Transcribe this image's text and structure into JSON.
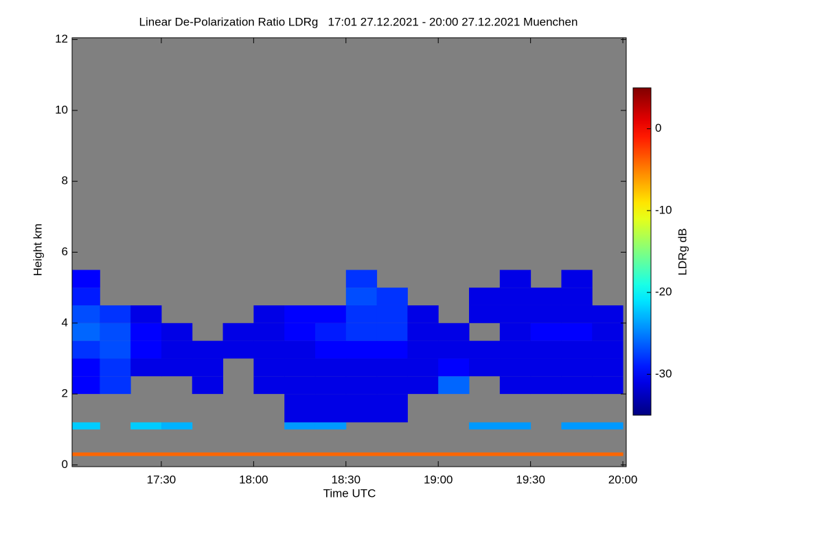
{
  "chart_data": {
    "type": "heatmap",
    "title": "Linear De-Polarization Ratio LDRg   17:01 27.12.2021 - 20:00 27.12.2021 Muenchen",
    "x_label": "Time UTC",
    "y_label": "Height km",
    "colorbar_label": "LDRg dB",
    "colormap": "jet",
    "missing_color": "#808080",
    "xlim": [
      17.0167,
      20.0183
    ],
    "ylim": [
      -0.05,
      12.05
    ],
    "clim": [
      -35,
      5
    ],
    "xticks": [
      {
        "value": 17.5,
        "label": "17:30"
      },
      {
        "value": 18.0,
        "label": "18:00"
      },
      {
        "value": 18.5,
        "label": "18:30"
      },
      {
        "value": 19.0,
        "label": "19:00"
      },
      {
        "value": 19.5,
        "label": "19:30"
      },
      {
        "value": 20.0,
        "label": "20:00"
      }
    ],
    "yticks": [
      0,
      2,
      4,
      6,
      8,
      10,
      12
    ],
    "cticks": [
      0,
      -10,
      -20,
      -30
    ],
    "xbins": [
      17.0167,
      17.1667,
      17.3333,
      17.5,
      17.6667,
      17.8333,
      18.0,
      18.1667,
      18.3333,
      18.5,
      18.6667,
      18.8333,
      19.0,
      19.1667,
      19.3333,
      19.5,
      19.6667,
      19.8333,
      20.0
    ],
    "ybins": [
      0,
      0.25,
      0.35,
      1.0,
      1.2,
      2.0,
      2.5,
      3.0,
      3.5,
      4.0,
      4.5,
      5.0,
      5.5
    ],
    "values": [
      [
        null,
        null,
        null,
        null,
        null,
        null,
        null,
        null,
        null,
        null,
        null,
        null,
        null,
        null,
        null,
        null,
        null,
        null
      ],
      [
        -4,
        -4,
        -4,
        -4,
        -4,
        -4,
        -4,
        -4,
        -4,
        -4,
        -4,
        -4,
        -4,
        -4,
        -4,
        -4,
        -4,
        -4
      ],
      [
        null,
        null,
        null,
        null,
        null,
        null,
        null,
        null,
        null,
        null,
        null,
        null,
        null,
        null,
        null,
        null,
        null,
        null
      ],
      [
        -22,
        null,
        -22,
        -23,
        null,
        null,
        null,
        -24,
        -24,
        null,
        null,
        null,
        null,
        -24,
        -24,
        null,
        -24,
        -24
      ],
      [
        null,
        null,
        null,
        null,
        null,
        null,
        null,
        -31,
        -31,
        -31,
        -31,
        null,
        null,
        null,
        null,
        null,
        null,
        null
      ],
      [
        -30,
        -28,
        null,
        null,
        -31,
        null,
        -31,
        -31,
        -31,
        -31,
        -31,
        -31,
        -26,
        null,
        -31,
        -31,
        -31,
        -31
      ],
      [
        -30,
        -28,
        -31,
        -31,
        -31,
        null,
        -31,
        -31,
        -31,
        -31,
        -31,
        -31,
        -30,
        -31,
        -31,
        -31,
        -31,
        -31
      ],
      [
        -28,
        -27,
        -30,
        -31,
        -31,
        -31,
        -31,
        -31,
        -30,
        -30,
        -30,
        -31,
        -31,
        -31,
        -31,
        -31,
        -31,
        -31
      ],
      [
        -26,
        -27,
        -30,
        -31,
        null,
        -31,
        -31,
        -30,
        -29,
        -28,
        -28,
        -31,
        -31,
        null,
        -31,
        -30,
        -30,
        -31
      ],
      [
        -27,
        -28,
        -31,
        null,
        null,
        null,
        -31,
        -30,
        -30,
        -28,
        -28,
        -31,
        null,
        -31,
        -31,
        -31,
        -31,
        -31
      ],
      [
        -29,
        null,
        null,
        null,
        null,
        null,
        null,
        null,
        null,
        -27,
        -28,
        null,
        null,
        -31,
        -31,
        -31,
        -31,
        null
      ],
      [
        -30,
        null,
        null,
        null,
        null,
        null,
        null,
        null,
        null,
        -28,
        null,
        null,
        null,
        null,
        -31,
        null,
        -31,
        null
      ]
    ]
  }
}
